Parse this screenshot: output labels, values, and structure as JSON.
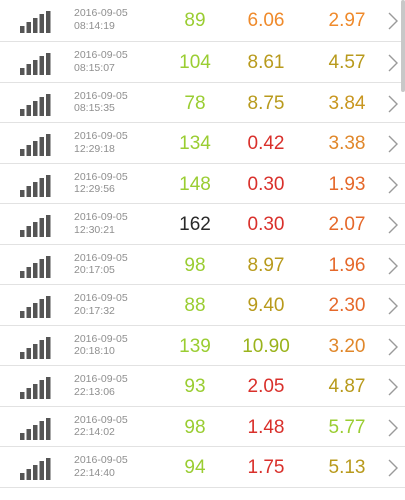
{
  "colors": {
    "lime": "#9acd32",
    "dark": "#2a2a2a",
    "red": "#d9302b",
    "olive": "#b89a1c",
    "orange": "#ef8a2b",
    "grey_text": "#8f8f8f"
  },
  "rows": [
    {
      "date": "2016-09-05",
      "time": "08:14:19",
      "v1": "89",
      "v1_color": "#9acd32",
      "v2": "6.06",
      "v2_color": "#ef8a2b",
      "v3": "2.97",
      "v3_color": "#ef8a2b",
      "signal_icon": "signal-bars-icon"
    },
    {
      "date": "2016-09-05",
      "time": "08:15:07",
      "v1": "104",
      "v1_color": "#9acd32",
      "v2": "8.61",
      "v2_color": "#b89a1c",
      "v3": "4.57",
      "v3_color": "#b89a1c",
      "signal_icon": "signal-bars-icon"
    },
    {
      "date": "2016-09-05",
      "time": "08:15:35",
      "v1": "78",
      "v1_color": "#9acd32",
      "v2": "8.75",
      "v2_color": "#b89a1c",
      "v3": "3.84",
      "v3_color": "#c8961f",
      "signal_icon": "signal-bars-icon"
    },
    {
      "date": "2016-09-05",
      "time": "12:29:18",
      "v1": "134",
      "v1_color": "#9acd32",
      "v2": "0.42",
      "v2_color": "#d9302b",
      "v3": "3.38",
      "v3_color": "#e0872a",
      "signal_icon": "signal-bars-icon"
    },
    {
      "date": "2016-09-05",
      "time": "12:29:56",
      "v1": "148",
      "v1_color": "#9acd32",
      "v2": "0.30",
      "v2_color": "#d9302b",
      "v3": "1.93",
      "v3_color": "#e5682a",
      "signal_icon": "signal-bars-icon"
    },
    {
      "date": "2016-09-05",
      "time": "12:30:21",
      "v1": "162",
      "v1_color": "#2a2a2a",
      "v2": "0.30",
      "v2_color": "#d9302b",
      "v3": "2.07",
      "v3_color": "#e5682a",
      "signal_icon": "signal-bars-icon"
    },
    {
      "date": "2016-09-05",
      "time": "20:17:05",
      "v1": "98",
      "v1_color": "#9acd32",
      "v2": "8.97",
      "v2_color": "#b89a1c",
      "v3": "1.96",
      "v3_color": "#e5682a",
      "signal_icon": "signal-bars-icon"
    },
    {
      "date": "2016-09-05",
      "time": "20:17:32",
      "v1": "88",
      "v1_color": "#9acd32",
      "v2": "9.40",
      "v2_color": "#b89a1c",
      "v3": "2.30",
      "v3_color": "#e5682a",
      "signal_icon": "signal-bars-icon"
    },
    {
      "date": "2016-09-05",
      "time": "20:18:10",
      "v1": "139",
      "v1_color": "#9acd32",
      "v2": "10.90",
      "v2_color": "#9ab31c",
      "v3": "3.20",
      "v3_color": "#e0872a",
      "signal_icon": "signal-bars-icon"
    },
    {
      "date": "2016-09-05",
      "time": "22:13:06",
      "v1": "93",
      "v1_color": "#9acd32",
      "v2": "2.05",
      "v2_color": "#d9302b",
      "v3": "4.87",
      "v3_color": "#b89a1c",
      "signal_icon": "signal-bars-icon"
    },
    {
      "date": "2016-09-05",
      "time": "22:14:02",
      "v1": "98",
      "v1_color": "#9acd32",
      "v2": "1.48",
      "v2_color": "#d9302b",
      "v3": "5.77",
      "v3_color": "#9acd32",
      "signal_icon": "signal-bars-icon"
    },
    {
      "date": "2016-09-05",
      "time": "22:14:40",
      "v1": "94",
      "v1_color": "#9acd32",
      "v2": "1.75",
      "v2_color": "#d9302b",
      "v3": "5.13",
      "v3_color": "#b89a1c",
      "signal_icon": "signal-bars-icon"
    }
  ]
}
